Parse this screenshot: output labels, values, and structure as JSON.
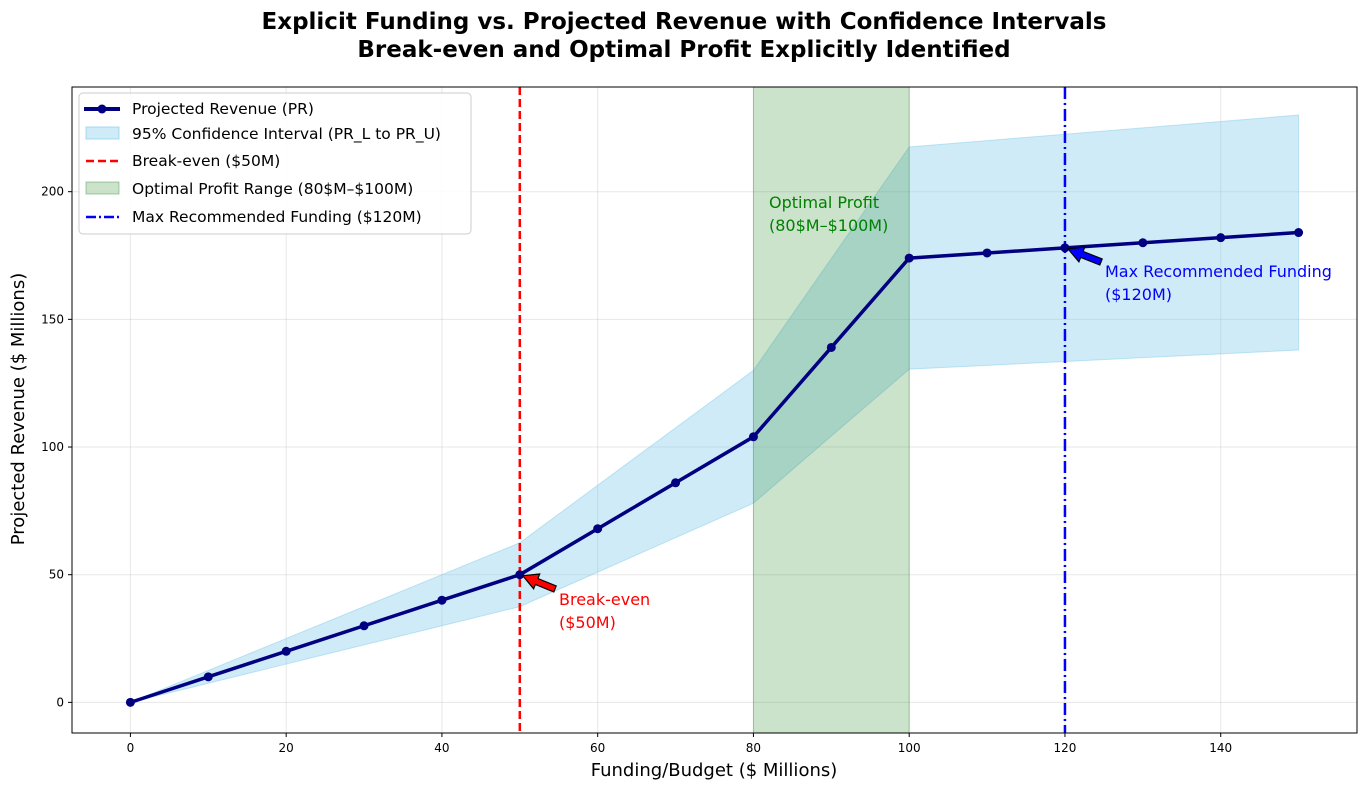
{
  "chart_data": {
    "type": "line",
    "title": "Explicit Funding vs. Projected Revenue with Confidence Intervals",
    "subtitle": "Break-even and Optimal Profit Explicitly Identified",
    "xlabel": "Funding/Budget ($ Millions)",
    "ylabel": "Projected Revenue ($ Millions)",
    "xlim": [
      -7.5,
      157.5
    ],
    "ylim": [
      -12,
      241
    ],
    "xticks": [
      0,
      20,
      40,
      60,
      80,
      100,
      120,
      140
    ],
    "yticks": [
      0,
      50,
      100,
      150,
      200
    ],
    "grid": true,
    "legend_position": "upper left",
    "x": [
      0,
      10,
      20,
      30,
      40,
      50,
      60,
      70,
      80,
      90,
      100,
      110,
      120,
      130,
      140,
      150
    ],
    "series": [
      {
        "name": "Projected Revenue (PR)",
        "values": [
          0,
          10,
          20,
          30,
          40,
          50,
          68,
          86,
          104,
          139,
          174,
          176,
          178,
          180,
          182,
          184
        ],
        "color": "#000080"
      }
    ],
    "confidence_band": {
      "name": "95% Confidence Interval (PR_L to PR_U)",
      "lower": [
        0,
        7.5,
        15,
        22.5,
        30,
        37.5,
        51,
        64.5,
        78,
        104.3,
        130.5,
        132,
        133.5,
        135,
        136.5,
        138
      ],
      "upper": [
        0,
        12.5,
        25,
        37.5,
        50,
        62.5,
        85,
        107.5,
        130,
        173.8,
        217.5,
        220,
        222.5,
        225,
        227.5,
        230
      ],
      "color": "#87ceeb"
    },
    "reference_lines": [
      {
        "name": "Break-even ($50M)",
        "x": 50,
        "color": "#ff0000",
        "style": "dashed"
      },
      {
        "name": "Max Recommended Funding ($120M)",
        "x": 120,
        "color": "#0000ff",
        "style": "dashdot"
      }
    ],
    "shaded_region": {
      "name": "Optimal Profit Range (80$M–$100M)",
      "x0": 80,
      "x1": 100,
      "color": "#2e8b2e"
    },
    "annotations": [
      {
        "text": [
          "Break-even",
          "($50M)"
        ],
        "x": 50,
        "y": 50,
        "color": "#ff0000"
      },
      {
        "text": [
          "Optimal Profit",
          "(80$M–$100M)"
        ],
        "color": "#008000"
      },
      {
        "text": [
          "Max Recommended Funding",
          "($120M)"
        ],
        "x": 120,
        "y": 178,
        "color": "#0000ff"
      }
    ]
  }
}
